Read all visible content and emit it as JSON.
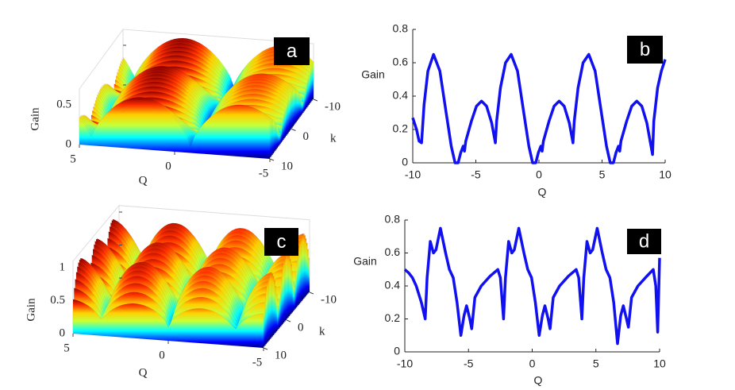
{
  "chart_data": [
    {
      "type": "surface3d",
      "annotation": "a",
      "xlabel": "Q",
      "ylabel": "k",
      "zlabel": "Gain",
      "xlim": [
        -5,
        5
      ],
      "xticks": [
        5,
        0,
        -5
      ],
      "ylim": [
        -10,
        10
      ],
      "yticks": [
        -10,
        0,
        10
      ],
      "zlim": [
        0,
        0.7
      ],
      "zticks": [
        0,
        0.5
      ]
    },
    {
      "type": "line",
      "annotation": "b",
      "xlabel": "Q",
      "ylabel": "Gain",
      "xlim": [
        -10,
        10
      ],
      "xticks": [
        -10,
        -5,
        0,
        5,
        10
      ],
      "ylim": [
        0,
        0.8
      ],
      "yticks": [
        0,
        0.2,
        0.4,
        0.6,
        0.8
      ],
      "x": [
        -10,
        -9.7,
        -9.5,
        -9.3,
        -9.1,
        -8.8,
        -8.35,
        -7.85,
        -7.35,
        -6.95,
        -6.65,
        -6.4,
        -6.2,
        -6.0,
        -5.9,
        -5.8,
        -5.35,
        -4.95,
        -4.55,
        -4.15,
        -3.75,
        -3.45,
        -3.35,
        -3.05,
        -2.65,
        -2.2,
        -1.7,
        -1.2,
        -0.8,
        -0.5,
        -0.25,
        -0.05,
        0.15,
        0.25,
        0.35,
        0.8,
        1.2,
        1.6,
        2.0,
        2.4,
        2.7,
        2.8,
        3.1,
        3.5,
        3.95,
        4.45,
        4.95,
        5.35,
        5.65,
        5.9,
        6.1,
        6.3,
        6.4,
        6.5,
        6.95,
        7.35,
        7.75,
        8.15,
        8.55,
        9.0,
        9.1,
        9.4,
        9.7,
        10
      ],
      "series": [
        {
          "color": "#1010f0",
          "values": [
            0.27,
            0.2,
            0.13,
            0.12,
            0.35,
            0.55,
            0.65,
            0.55,
            0.3,
            0.1,
            0,
            0,
            0.06,
            0.1,
            0.07,
            0.13,
            0.25,
            0.34,
            0.37,
            0.34,
            0.24,
            0.12,
            0.25,
            0.45,
            0.6,
            0.65,
            0.55,
            0.3,
            0.1,
            0,
            0,
            0.06,
            0.1,
            0.07,
            0.13,
            0.25,
            0.34,
            0.37,
            0.34,
            0.24,
            0.12,
            0.25,
            0.45,
            0.6,
            0.65,
            0.55,
            0.3,
            0.1,
            0,
            0,
            0.06,
            0.1,
            0.07,
            0.13,
            0.25,
            0.34,
            0.37,
            0.34,
            0.24,
            0.05,
            0.25,
            0.45,
            0.55,
            0.62
          ]
        }
      ]
    },
    {
      "type": "surface3d",
      "annotation": "c",
      "xlabel": "Q",
      "ylabel": "k",
      "zlabel": "Gain",
      "xlim": [
        -5,
        5
      ],
      "xticks": [
        5,
        0,
        -5
      ],
      "ylim": [
        -10,
        10
      ],
      "yticks": [
        -10,
        0,
        10
      ],
      "zlim": [
        0,
        1.1
      ],
      "zticks": [
        0,
        0.5,
        1
      ]
    },
    {
      "type": "line",
      "annotation": "d",
      "xlabel": "Q",
      "ylabel": "Gain",
      "xlim": [
        -10,
        10
      ],
      "xticks": [
        -10,
        -5,
        0,
        5,
        10
      ],
      "ylim": [
        0,
        0.8
      ],
      "yticks": [
        0,
        0.2,
        0.4,
        0.6,
        0.8
      ],
      "x": [
        -10,
        -9.7,
        -9.4,
        -9.1,
        -8.7,
        -8.4,
        -8.25,
        -8.0,
        -7.75,
        -7.55,
        -7.2,
        -6.8,
        -6.5,
        -6.2,
        -5.9,
        -5.6,
        -5.35,
        -5.15,
        -4.9,
        -4.75,
        -4.5,
        -4.0,
        -3.3,
        -2.7,
        -2.5,
        -2.25,
        -2.1,
        -1.85,
        -1.6,
        -1.4,
        -1.05,
        -0.65,
        -0.35,
        -0.05,
        0.25,
        0.55,
        0.8,
        1.0,
        1.25,
        1.4,
        1.65,
        2.15,
        2.85,
        3.45,
        3.65,
        3.9,
        4.05,
        4.3,
        4.55,
        4.75,
        5.1,
        5.5,
        5.8,
        6.1,
        6.4,
        6.7,
        6.95,
        7.15,
        7.4,
        7.55,
        7.8,
        8.3,
        9.0,
        9.5,
        9.7,
        9.85,
        10
      ],
      "series": [
        {
          "color": "#1010f0",
          "values": [
            0.5,
            0.48,
            0.45,
            0.4,
            0.3,
            0.2,
            0.45,
            0.67,
            0.6,
            0.62,
            0.75,
            0.6,
            0.5,
            0.45,
            0.3,
            0.1,
            0.22,
            0.28,
            0.2,
            0.14,
            0.33,
            0.4,
            0.46,
            0.5,
            0.45,
            0.2,
            0.45,
            0.67,
            0.6,
            0.62,
            0.75,
            0.6,
            0.5,
            0.45,
            0.3,
            0.1,
            0.22,
            0.28,
            0.2,
            0.14,
            0.33,
            0.4,
            0.46,
            0.5,
            0.45,
            0.2,
            0.45,
            0.67,
            0.6,
            0.62,
            0.75,
            0.6,
            0.5,
            0.45,
            0.3,
            0.05,
            0.22,
            0.28,
            0.2,
            0.15,
            0.33,
            0.4,
            0.46,
            0.5,
            0.4,
            0.12,
            0.57
          ]
        }
      ]
    }
  ]
}
